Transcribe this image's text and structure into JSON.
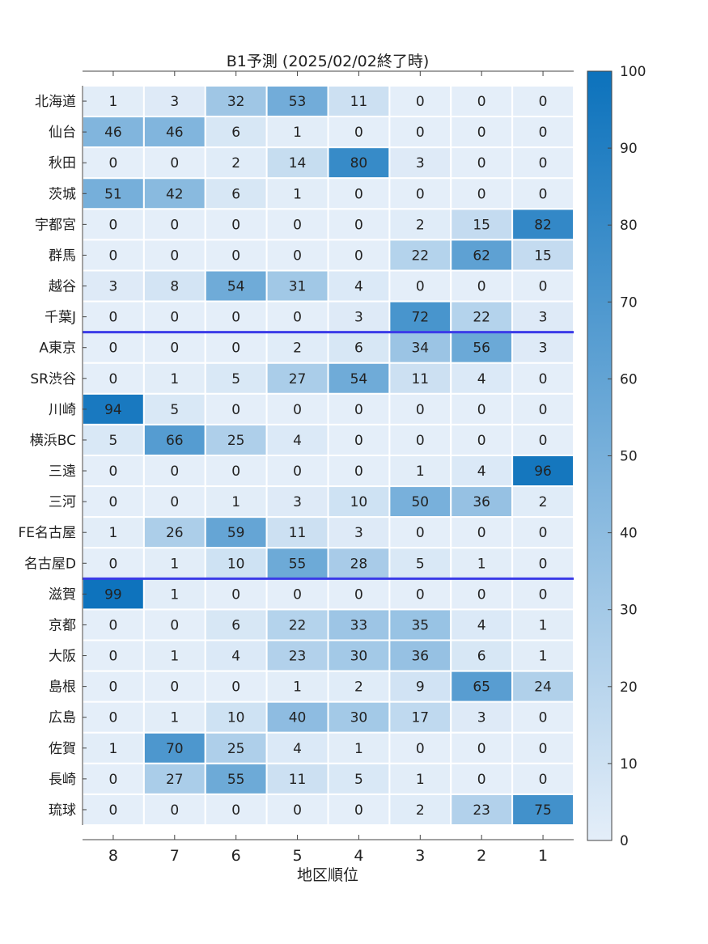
{
  "chart_data": {
    "type": "heatmap",
    "title": "B1予測 (2025/02/02終了時)",
    "xlabel": "地区順位",
    "ylabel": "",
    "x_categories": [
      "8",
      "7",
      "6",
      "5",
      "4",
      "3",
      "2",
      "1"
    ],
    "y_categories": [
      "北海道",
      "仙台",
      "秋田",
      "茨城",
      "宇都宮",
      "群馬",
      "越谷",
      "千葉J",
      "A東京",
      "SR渋谷",
      "川崎",
      "横浜BC",
      "三遠",
      "三河",
      "FE名古屋",
      "名古屋D",
      "滋賀",
      "京都",
      "大阪",
      "島根",
      "広島",
      "佐賀",
      "長崎",
      "琉球"
    ],
    "values": [
      [
        1,
        3,
        32,
        53,
        11,
        0,
        0,
        0
      ],
      [
        46,
        46,
        6,
        1,
        0,
        0,
        0,
        0
      ],
      [
        0,
        0,
        2,
        14,
        80,
        3,
        0,
        0
      ],
      [
        51,
        42,
        6,
        1,
        0,
        0,
        0,
        0
      ],
      [
        0,
        0,
        0,
        0,
        0,
        2,
        15,
        82
      ],
      [
        0,
        0,
        0,
        0,
        0,
        22,
        62,
        15
      ],
      [
        3,
        8,
        54,
        31,
        4,
        0,
        0,
        0
      ],
      [
        0,
        0,
        0,
        0,
        3,
        72,
        22,
        3
      ],
      [
        0,
        0,
        0,
        2,
        6,
        34,
        56,
        3
      ],
      [
        0,
        1,
        5,
        27,
        54,
        11,
        4,
        0
      ],
      [
        94,
        5,
        0,
        0,
        0,
        0,
        0,
        0
      ],
      [
        5,
        66,
        25,
        4,
        0,
        0,
        0,
        0
      ],
      [
        0,
        0,
        0,
        0,
        0,
        1,
        4,
        96
      ],
      [
        0,
        0,
        1,
        3,
        10,
        50,
        36,
        2
      ],
      [
        1,
        26,
        59,
        11,
        3,
        0,
        0,
        0
      ],
      [
        0,
        1,
        10,
        55,
        28,
        5,
        1,
        0
      ],
      [
        99,
        1,
        0,
        0,
        0,
        0,
        0,
        0
      ],
      [
        0,
        0,
        6,
        22,
        33,
        35,
        4,
        1
      ],
      [
        0,
        1,
        4,
        23,
        30,
        36,
        6,
        1
      ],
      [
        0,
        0,
        0,
        1,
        2,
        9,
        65,
        24
      ],
      [
        0,
        1,
        10,
        40,
        30,
        17,
        3,
        0
      ],
      [
        1,
        70,
        25,
        4,
        1,
        0,
        0,
        0
      ],
      [
        0,
        27,
        55,
        11,
        5,
        1,
        0,
        0
      ],
      [
        0,
        0,
        0,
        0,
        0,
        2,
        23,
        75
      ]
    ],
    "group_dividers_after_row": [
      7,
      15
    ],
    "divider_color": "#3b3be8",
    "colorbar": {
      "min": 0,
      "max": 100,
      "ticks": [
        0,
        10,
        20,
        30,
        40,
        50,
        60,
        70,
        80,
        90,
        100
      ],
      "color_low": "#e4eef9",
      "color_high": "#0c72bc"
    },
    "grid": false
  }
}
